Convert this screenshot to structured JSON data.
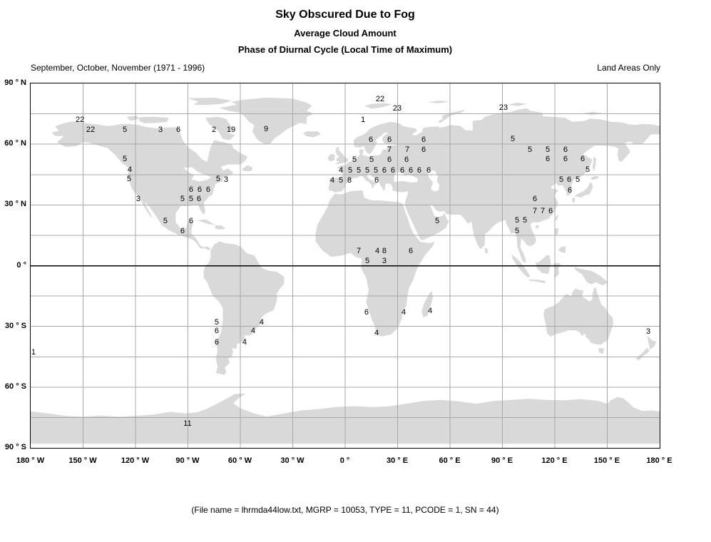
{
  "titles": {
    "main": "Sky Obscured Due to Fog",
    "sub1": "Average Cloud Amount",
    "sub2": "Phase of Diurnal Cycle (Local Time of Maximum)"
  },
  "header": {
    "left": "September, October, November (1971 - 1996)",
    "right": "Land Areas Only"
  },
  "caption": "(File name = lhrmda44low.txt, MGRP = 10053, TYPE = 11, PCODE = 1, SN = 44)",
  "axes": {
    "y_ticks": [
      "90 ° N",
      "60 ° N",
      "30 ° N",
      "0 °",
      "30 ° S",
      "60 ° S",
      "90 ° S"
    ],
    "x_ticks": [
      "180 ° W",
      "150 ° W",
      "120 ° W",
      "90 ° W",
      "60 ° W",
      "30 ° W",
      "0 °",
      "30 ° E",
      "60 ° E",
      "90 ° E",
      "120 ° E",
      "150 ° E",
      "180 ° E"
    ]
  },
  "chart_data": {
    "type": "scatter",
    "subtype": "map-labeled-values",
    "projection": "equirectangular",
    "title": "Sky Obscured Due to Fog",
    "xlabel": "longitude (deg)",
    "ylabel": "latitude (deg)",
    "xlim": [
      -180,
      180
    ],
    "ylim": [
      -90,
      90
    ],
    "grid": true,
    "lon_grid_step_deg": 30,
    "lat_grid_step_deg": 15,
    "equator_highlighted": true,
    "legend_position": "none",
    "colors": {
      "land": "#d9d9d9",
      "grid": "#a8a8a8",
      "equator": "#000000",
      "text": "#000000",
      "background": "#ffffff"
    },
    "points_format": [
      "value_local_time_of_maximum",
      "lon_deg",
      "lat_deg"
    ],
    "points": [
      [
        22,
        -151.8,
        72.4
      ],
      [
        22,
        -145.7,
        67.5
      ],
      [
        5,
        -126.1,
        67.5
      ],
      [
        3,
        -105.7,
        67.5
      ],
      [
        6,
        -95.5,
        67.5
      ],
      [
        2,
        -75.1,
        67.5
      ],
      [
        19,
        -65.3,
        67.5
      ],
      [
        9,
        -45.3,
        67.8
      ],
      [
        5,
        -126.1,
        53.0
      ],
      [
        4,
        -123.3,
        47.7
      ],
      [
        5,
        -123.7,
        43.2
      ],
      [
        5,
        -72.7,
        43.2
      ],
      [
        3,
        -68.2,
        42.8
      ],
      [
        6,
        -88.2,
        37.9
      ],
      [
        6,
        -83.3,
        37.9
      ],
      [
        6,
        -78.4,
        37.9
      ],
      [
        3,
        -118.4,
        33.3
      ],
      [
        5,
        -93.1,
        33.3
      ],
      [
        5,
        -88.2,
        33.3
      ],
      [
        6,
        -83.7,
        33.3
      ],
      [
        5,
        -102.9,
        22.4
      ],
      [
        6,
        -88.2,
        22.4
      ],
      [
        6,
        -93.1,
        17.4
      ],
      [
        22,
        20.0,
        82.6
      ],
      [
        23,
        29.8,
        78.0
      ],
      [
        23,
        90.6,
        78.4
      ],
      [
        1,
        10.2,
        72.4
      ],
      [
        6,
        14.7,
        62.5
      ],
      [
        6,
        25.3,
        62.5
      ],
      [
        6,
        44.9,
        62.5
      ],
      [
        7,
        25.3,
        57.6
      ],
      [
        7,
        35.5,
        57.6
      ],
      [
        6,
        44.9,
        57.6
      ],
      [
        5,
        5.3,
        52.7
      ],
      [
        5,
        15.1,
        52.7
      ],
      [
        6,
        25.3,
        52.7
      ],
      [
        6,
        35.1,
        52.7
      ],
      [
        4,
        -2.4,
        47.4
      ],
      [
        5,
        2.9,
        47.4
      ],
      [
        5,
        7.8,
        47.4
      ],
      [
        5,
        12.7,
        47.4
      ],
      [
        5,
        17.6,
        47.4
      ],
      [
        6,
        22.4,
        47.4
      ],
      [
        6,
        27.3,
        47.4
      ],
      [
        6,
        32.7,
        47.4
      ],
      [
        6,
        37.6,
        47.4
      ],
      [
        6,
        42.4,
        47.4
      ],
      [
        6,
        47.8,
        47.4
      ],
      [
        4,
        -7.3,
        42.4
      ],
      [
        5,
        -2.4,
        42.4
      ],
      [
        8,
        2.4,
        42.4
      ],
      [
        6,
        18.0,
        42.4
      ],
      [
        5,
        95.9,
        62.8
      ],
      [
        5,
        105.7,
        57.6
      ],
      [
        5,
        115.9,
        57.6
      ],
      [
        6,
        126.1,
        57.6
      ],
      [
        6,
        115.9,
        53.0
      ],
      [
        6,
        126.1,
        53.0
      ],
      [
        6,
        135.9,
        53.0
      ],
      [
        5,
        138.8,
        47.7
      ],
      [
        5,
        123.7,
        42.8
      ],
      [
        6,
        128.2,
        42.8
      ],
      [
        5,
        133.1,
        42.8
      ],
      [
        6,
        128.6,
        37.5
      ],
      [
        6,
        108.6,
        33.3
      ],
      [
        7,
        108.6,
        27.3
      ],
      [
        7,
        113.1,
        27.3
      ],
      [
        6,
        117.6,
        27.3
      ],
      [
        5,
        98.4,
        22.7
      ],
      [
        5,
        102.9,
        22.7
      ],
      [
        5,
        98.4,
        17.4
      ],
      [
        5,
        52.7,
        22.4
      ],
      [
        7,
        7.8,
        7.6
      ],
      [
        4,
        18.4,
        7.6
      ],
      [
        8,
        22.4,
        7.6
      ],
      [
        6,
        37.6,
        7.6
      ],
      [
        5,
        12.7,
        2.6
      ],
      [
        3,
        22.4,
        2.6
      ],
      [
        6,
        12.2,
        -22.7
      ],
      [
        4,
        33.5,
        -22.7
      ],
      [
        4,
        48.6,
        -22.0
      ],
      [
        4,
        18.0,
        -32.9
      ],
      [
        5,
        -73.5,
        -27.6
      ],
      [
        4,
        -47.8,
        -27.6
      ],
      [
        6,
        -73.5,
        -31.9
      ],
      [
        4,
        -52.7,
        -31.9
      ],
      [
        6,
        -73.5,
        -37.5
      ],
      [
        4,
        -57.6,
        -37.5
      ],
      [
        1,
        -178.4,
        -42.4
      ],
      [
        3,
        173.5,
        -32.2
      ],
      [
        11,
        -90.2,
        -77.7
      ]
    ]
  }
}
